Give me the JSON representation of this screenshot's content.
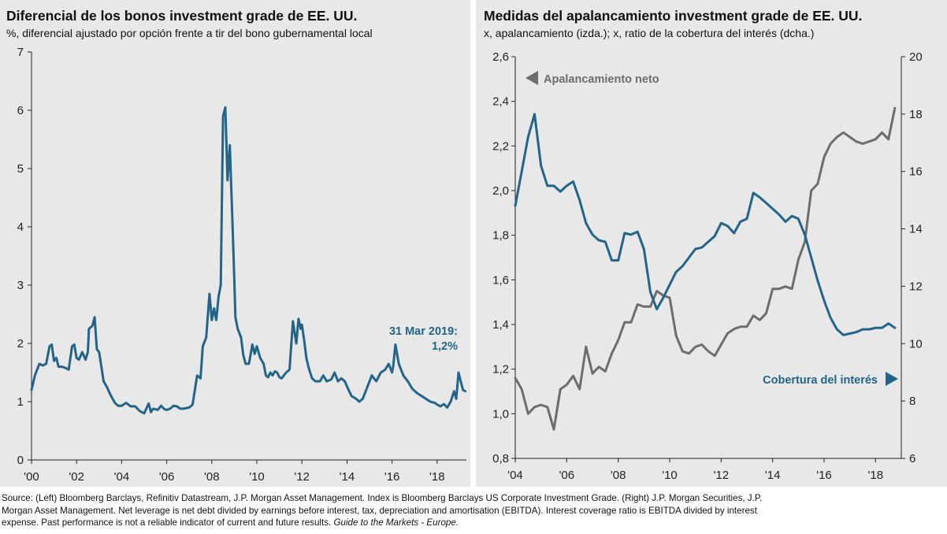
{
  "colors": {
    "blue": "#226588",
    "gray": "#6d6d6d",
    "background": "#e8e8e8"
  },
  "footer": {
    "source_text": "Source: (Left) Bloomberg Barclays, Refinitiv Datastream, J.P. Morgan Asset Management. Index is Bloomberg Barclays US Corporate Investment Grade. (Right) J.P. Morgan Securities, J.P. Morgan Asset Management. Net leverage is net debt divided by earnings before interest, tax, depreciation and amortisation (EBITDA). Interest coverage ratio is EBITDA divided by interest expense. Past performance is not a reliable indicator of current and future results.",
    "guide": "Guide to the Markets - Europe."
  },
  "chart_data": [
    {
      "type": "line",
      "title": "Diferencial de los bonos investment grade de EE. UU.",
      "subtitle": "%, diferencial ajustado por opción frente a tir del bono gubernamental local",
      "xlabel": "",
      "ylabel": "",
      "xlim": [
        2000,
        2019.3
      ],
      "ylim": [
        0,
        7
      ],
      "yticks": [
        0,
        1,
        2,
        3,
        4,
        5,
        6,
        7
      ],
      "ytick_labels": [
        "0",
        "1",
        "2",
        "3",
        "4",
        "5",
        "6",
        "7"
      ],
      "xticks": [
        2000,
        2002,
        2004,
        2006,
        2008,
        2010,
        2012,
        2014,
        2016,
        2018
      ],
      "xtick_labels": [
        "'00",
        "'02",
        "'04",
        "'06",
        "'08",
        "'10",
        "'12",
        "'14",
        "'16",
        "'18"
      ],
      "annotation": [
        "31 Mar 2019:",
        "1,2%"
      ],
      "series": [
        {
          "name": "Diferencial",
          "color": "#226588",
          "x": [
            2000.0,
            2000.15,
            2000.35,
            2000.5,
            2000.65,
            2000.8,
            2000.9,
            2001.0,
            2001.1,
            2001.2,
            2001.35,
            2001.5,
            2001.65,
            2001.8,
            2001.9,
            2002.0,
            2002.1,
            2002.25,
            2002.4,
            2002.5,
            2002.55,
            2002.7,
            2002.8,
            2002.9,
            2003.0,
            2003.1,
            2003.2,
            2003.35,
            2003.5,
            2003.7,
            2003.85,
            2004.0,
            2004.2,
            2004.4,
            2004.6,
            2004.8,
            2005.0,
            2005.2,
            2005.3,
            2005.4,
            2005.5,
            2005.6,
            2005.75,
            2005.9,
            2006.0,
            2006.15,
            2006.3,
            2006.45,
            2006.6,
            2006.75,
            2007.0,
            2007.15,
            2007.35,
            2007.5,
            2007.6,
            2007.75,
            2007.9,
            2008.0,
            2008.1,
            2008.2,
            2008.3,
            2008.4,
            2008.5,
            2008.6,
            2008.7,
            2008.8,
            2008.9,
            2009.0,
            2009.05,
            2009.15,
            2009.2,
            2009.3,
            2009.4,
            2009.5,
            2009.65,
            2009.8,
            2009.9,
            2010.0,
            2010.15,
            2010.3,
            2010.4,
            2010.5,
            2010.6,
            2010.7,
            2010.8,
            2010.9,
            2011.0,
            2011.1,
            2011.2,
            2011.3,
            2011.45,
            2011.6,
            2011.75,
            2011.85,
            2011.95,
            2012.0,
            2012.1,
            2012.2,
            2012.3,
            2012.45,
            2012.6,
            2012.8,
            2012.95,
            2013.1,
            2013.3,
            2013.45,
            2013.6,
            2013.75,
            2013.9,
            2014.05,
            2014.2,
            2014.4,
            2014.55,
            2014.7,
            2014.9,
            2015.1,
            2015.3,
            2015.5,
            2015.7,
            2015.85,
            2016.0,
            2016.05,
            2016.15,
            2016.3,
            2016.5,
            2016.7,
            2016.9,
            2017.1,
            2017.3,
            2017.5,
            2017.7,
            2017.9,
            2018.0,
            2018.15,
            2018.3,
            2018.45,
            2018.6,
            2018.75,
            2018.85,
            2018.95,
            2019.05,
            2019.15,
            2019.25
          ],
          "y": [
            1.2,
            1.45,
            1.65,
            1.62,
            1.65,
            1.95,
            1.98,
            1.7,
            1.75,
            1.6,
            1.6,
            1.58,
            1.55,
            1.95,
            1.98,
            1.75,
            1.72,
            1.85,
            1.72,
            1.85,
            2.25,
            2.3,
            2.45,
            1.9,
            1.85,
            1.6,
            1.35,
            1.25,
            1.12,
            0.98,
            0.93,
            0.93,
            0.98,
            0.92,
            0.92,
            0.84,
            0.8,
            0.97,
            0.82,
            0.88,
            0.87,
            0.86,
            0.93,
            0.87,
            0.86,
            0.88,
            0.93,
            0.92,
            0.88,
            0.88,
            0.9,
            0.95,
            1.45,
            1.4,
            1.95,
            2.1,
            2.85,
            2.4,
            2.6,
            2.4,
            2.8,
            3.0,
            5.9,
            6.05,
            4.8,
            5.4,
            4.3,
            3.1,
            2.45,
            2.25,
            2.2,
            2.1,
            1.8,
            1.65,
            1.65,
            1.98,
            1.82,
            1.95,
            1.75,
            1.65,
            1.45,
            1.42,
            1.5,
            1.45,
            1.52,
            1.5,
            1.42,
            1.4,
            1.45,
            1.5,
            1.55,
            2.38,
            2.0,
            2.42,
            2.25,
            2.32,
            2.05,
            1.75,
            1.58,
            1.4,
            1.35,
            1.35,
            1.45,
            1.35,
            1.38,
            1.5,
            1.35,
            1.4,
            1.35,
            1.22,
            1.1,
            1.05,
            1.0,
            1.05,
            1.25,
            1.45,
            1.35,
            1.5,
            1.55,
            1.65,
            1.5,
            1.6,
            1.98,
            1.65,
            1.45,
            1.35,
            1.22,
            1.15,
            1.1,
            1.05,
            1.0,
            0.98,
            0.95,
            0.92,
            0.96,
            0.9,
            1.0,
            1.18,
            1.05,
            1.5,
            1.35,
            1.2,
            1.18
          ]
        }
      ]
    },
    {
      "type": "line",
      "title": "Medidas del apalancamiento investment grade de EE. UU.",
      "subtitle": "x, apalancamiento (izda.); x, ratio de la cobertura del interés (dcha.)",
      "xlabel": "",
      "ylabel": "",
      "xlim": [
        2004,
        2019.0
      ],
      "ylim_left": [
        0.8,
        2.6
      ],
      "yticks_left": [
        0.8,
        1.0,
        1.2,
        1.4,
        1.6,
        1.8,
        2.0,
        2.2,
        2.4,
        2.6
      ],
      "ytick_labels_left": [
        "0,8",
        "1,0",
        "1,2",
        "1,4",
        "1,6",
        "1,8",
        "2,0",
        "2,2",
        "2,4",
        "2,6"
      ],
      "ylim_right": [
        6,
        20
      ],
      "yticks_right": [
        6,
        8,
        10,
        12,
        14,
        16,
        18,
        20
      ],
      "ytick_labels_right": [
        "6",
        "8",
        "10",
        "12",
        "14",
        "16",
        "18",
        "20"
      ],
      "xticks": [
        2004,
        2006,
        2008,
        2010,
        2012,
        2014,
        2016,
        2018
      ],
      "xtick_labels": [
        "'04",
        "'06",
        "'08",
        "'10",
        "'12",
        "'14",
        "'16",
        "'18"
      ],
      "series": [
        {
          "name": "Apalancamiento neto",
          "axis": "left",
          "color": "#6d6d6d",
          "x": [
            2004.0,
            2004.25,
            2004.5,
            2004.75,
            2005.0,
            2005.25,
            2005.5,
            2005.75,
            2006.0,
            2006.25,
            2006.5,
            2006.75,
            2007.0,
            2007.25,
            2007.5,
            2007.75,
            2008.0,
            2008.25,
            2008.5,
            2008.75,
            2009.0,
            2009.25,
            2009.5,
            2009.75,
            2010.0,
            2010.25,
            2010.5,
            2010.75,
            2011.0,
            2011.25,
            2011.5,
            2011.75,
            2012.0,
            2012.25,
            2012.5,
            2012.75,
            2013.0,
            2013.25,
            2013.5,
            2013.75,
            2014.0,
            2014.25,
            2014.5,
            2014.75,
            2015.0,
            2015.25,
            2015.5,
            2015.75,
            2016.0,
            2016.25,
            2016.5,
            2016.75,
            2017.0,
            2017.25,
            2017.5,
            2017.75,
            2018.0,
            2018.25,
            2018.5,
            2018.75
          ],
          "y": [
            1.16,
            1.11,
            1.0,
            1.03,
            1.04,
            1.03,
            0.93,
            1.11,
            1.13,
            1.17,
            1.11,
            1.3,
            1.18,
            1.21,
            1.19,
            1.27,
            1.33,
            1.41,
            1.41,
            1.49,
            1.48,
            1.48,
            1.55,
            1.53,
            1.52,
            1.35,
            1.28,
            1.27,
            1.3,
            1.31,
            1.28,
            1.26,
            1.31,
            1.36,
            1.38,
            1.39,
            1.39,
            1.44,
            1.42,
            1.45,
            1.56,
            1.56,
            1.57,
            1.56,
            1.69,
            1.77,
            2.0,
            2.03,
            2.15,
            2.21,
            2.24,
            2.26,
            2.24,
            2.22,
            2.21,
            2.22,
            2.23,
            2.26,
            2.23,
            2.37
          ]
        },
        {
          "name": "Cobertura del interés",
          "axis": "right",
          "color": "#226588",
          "x": [
            2004.0,
            2004.25,
            2004.5,
            2004.75,
            2005.0,
            2005.25,
            2005.5,
            2005.75,
            2006.0,
            2006.25,
            2006.5,
            2006.75,
            2007.0,
            2007.25,
            2007.5,
            2007.75,
            2008.0,
            2008.25,
            2008.5,
            2008.75,
            2009.0,
            2009.25,
            2009.5,
            2009.75,
            2010.0,
            2010.25,
            2010.5,
            2010.75,
            2011.0,
            2011.25,
            2011.5,
            2011.75,
            2012.0,
            2012.25,
            2012.5,
            2012.75,
            2013.0,
            2013.25,
            2013.5,
            2013.75,
            2014.0,
            2014.25,
            2014.5,
            2014.75,
            2015.0,
            2015.25,
            2015.5,
            2015.75,
            2016.0,
            2016.25,
            2016.5,
            2016.75,
            2017.0,
            2017.25,
            2017.5,
            2017.75,
            2018.0,
            2018.25,
            2018.5,
            2018.75
          ],
          "y": [
            14.8,
            16.0,
            17.2,
            18.0,
            16.2,
            15.5,
            15.5,
            15.3,
            15.5,
            15.65,
            15.0,
            14.2,
            13.8,
            13.6,
            13.55,
            12.9,
            12.9,
            13.85,
            13.8,
            13.9,
            13.3,
            11.8,
            11.2,
            11.6,
            12.05,
            12.5,
            12.7,
            13.0,
            13.3,
            13.35,
            13.55,
            13.75,
            14.2,
            14.1,
            13.85,
            14.25,
            14.35,
            15.25,
            15.1,
            14.9,
            14.7,
            14.5,
            14.25,
            14.45,
            14.35,
            13.8,
            13.0,
            12.2,
            11.5,
            10.9,
            10.5,
            10.3,
            10.35,
            10.4,
            10.5,
            10.5,
            10.55,
            10.55,
            10.7,
            10.55
          ]
        }
      ],
      "annotations": {
        "left_series_label": "Apalancamiento neto",
        "right_series_label": "Cobertura del interés"
      }
    }
  ]
}
